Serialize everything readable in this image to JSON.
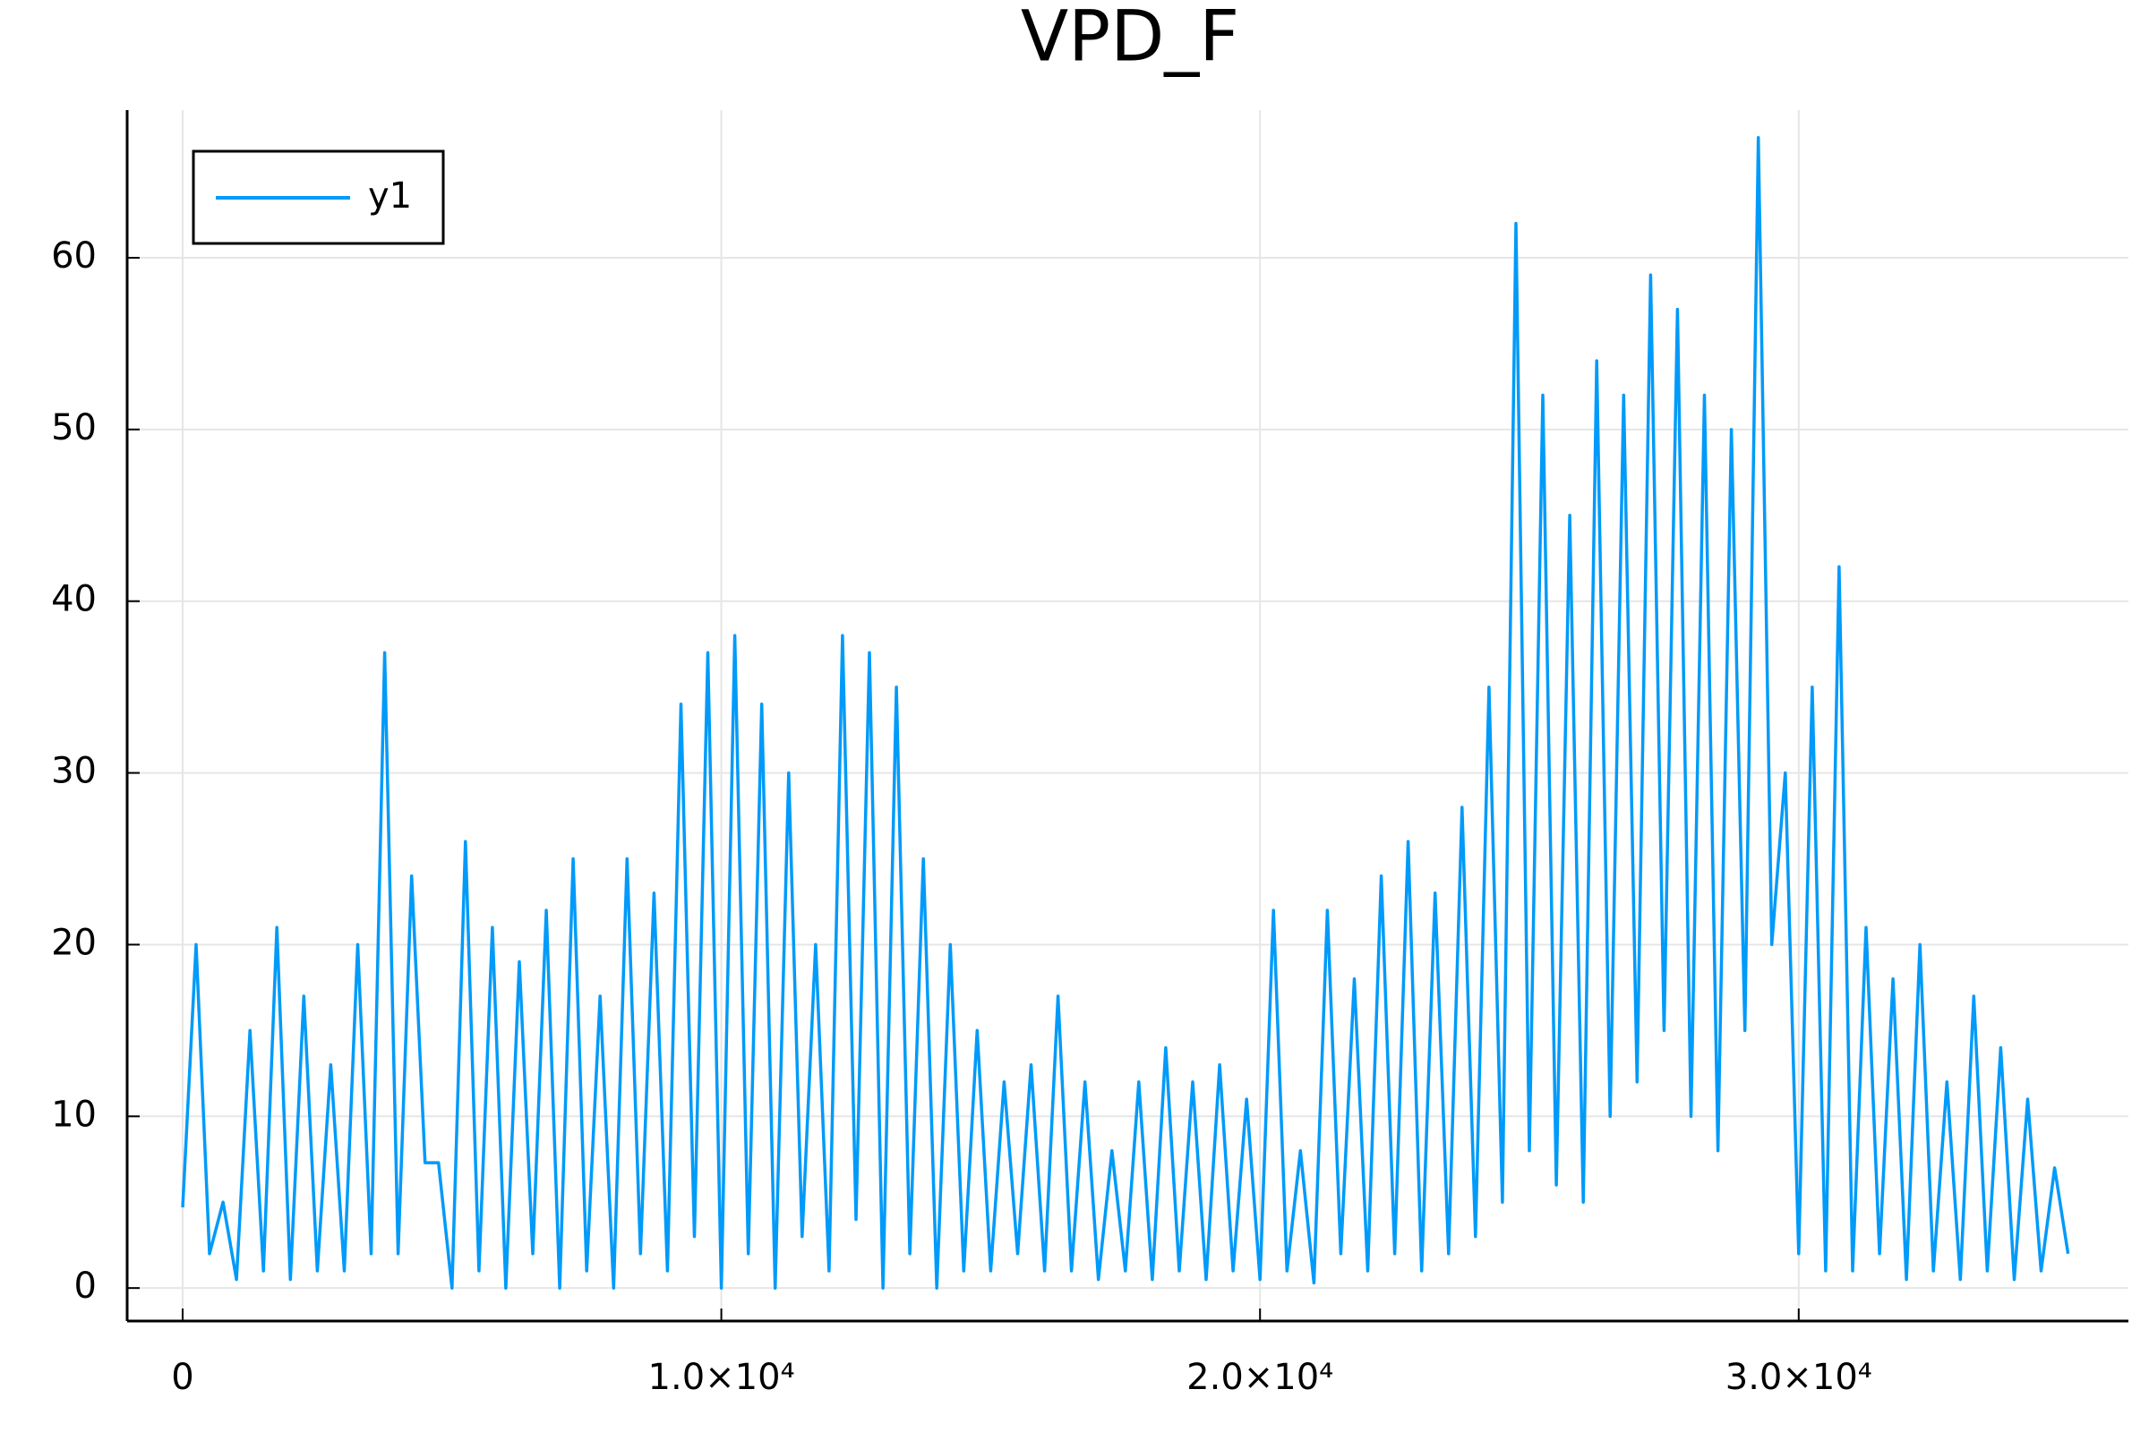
{
  "chart_data": {
    "type": "line",
    "title": "VPD_F",
    "x": [
      0,
      250,
      500,
      750,
      1000,
      1250,
      1500,
      1750,
      2000,
      2250,
      2500,
      2750,
      3000,
      3250,
      3500,
      3750,
      4000,
      4250,
      4500,
      4750,
      5000,
      5250,
      5500,
      5750,
      6000,
      6250,
      6500,
      6750,
      7000,
      7250,
      7500,
      7750,
      8000,
      8250,
      8500,
      8750,
      9000,
      9250,
      9500,
      9750,
      10000,
      10250,
      10500,
      10750,
      11000,
      11250,
      11500,
      11750,
      12000,
      12250,
      12500,
      12750,
      13000,
      13250,
      13500,
      13750,
      14000,
      14250,
      14500,
      14750,
      15000,
      15250,
      15500,
      15750,
      16000,
      16250,
      16500,
      16750,
      17000,
      17250,
      17500,
      17750,
      18000,
      18250,
      18500,
      18750,
      19000,
      19250,
      19500,
      19750,
      20000,
      20250,
      20500,
      20750,
      21000,
      21250,
      21500,
      21750,
      22000,
      22250,
      22500,
      22750,
      23000,
      23250,
      23500,
      23750,
      24000,
      24250,
      24500,
      24750,
      25000,
      25250,
      25500,
      25750,
      26000,
      26250,
      26500,
      26750,
      27000,
      27250,
      27500,
      27750,
      28000,
      28250,
      28500,
      28750,
      29000,
      29250,
      29500,
      29750,
      30000,
      30250,
      30500,
      30750,
      31000,
      31250,
      31500,
      31750,
      32000,
      32250,
      32500,
      32750,
      33000,
      33250,
      33500,
      33750,
      34000,
      34250,
      34500,
      34750,
      35000
    ],
    "series": [
      {
        "name": "y1",
        "color": "#009af9",
        "values": [
          4.7,
          20,
          2,
          5,
          0.5,
          15,
          1,
          21,
          0.5,
          17,
          1,
          13,
          1,
          20,
          2,
          37,
          2,
          24,
          7.3,
          7.3,
          0,
          26,
          1,
          21,
          0,
          19,
          2,
          22,
          0,
          25,
          1,
          17,
          0,
          25,
          2,
          23,
          1,
          34,
          3,
          37,
          0,
          38,
          2,
          34,
          0,
          30,
          3,
          20,
          1,
          38,
          4,
          37,
          0,
          35,
          2,
          25,
          0,
          20,
          1,
          15,
          1,
          12,
          2,
          13,
          1,
          17,
          1,
          12,
          0.5,
          8,
          1,
          12,
          0.5,
          14,
          1,
          12,
          0.5,
          13,
          1,
          11,
          0.5,
          22,
          1,
          8,
          0.3,
          22,
          2,
          18,
          1,
          24,
          2,
          26,
          1,
          23,
          2,
          28,
          3,
          35,
          5,
          62,
          8,
          52,
          6,
          45,
          5,
          54,
          10,
          52,
          12,
          59,
          15,
          57,
          10,
          52,
          8,
          50,
          15,
          67,
          20,
          30,
          2,
          35,
          1,
          42,
          1,
          21,
          2,
          18,
          0.5,
          20,
          1,
          12,
          0.5,
          17,
          1,
          14,
          0.5,
          11,
          1,
          7,
          2
        ]
      }
    ],
    "xlim": [
      -1030,
      36120
    ],
    "xticks": [
      0,
      {
        "value": 10000,
        "label": "1.0×10⁴"
      },
      {
        "value": 20000,
        "label": "2.0×10⁴"
      },
      {
        "value": 30000,
        "label": "3.0×10⁴"
      }
    ],
    "ylim": [
      -1.92,
      68.6
    ],
    "yticks": [
      0,
      10,
      20,
      30,
      40,
      50,
      60
    ],
    "grid": true,
    "legend": "top-left"
  }
}
